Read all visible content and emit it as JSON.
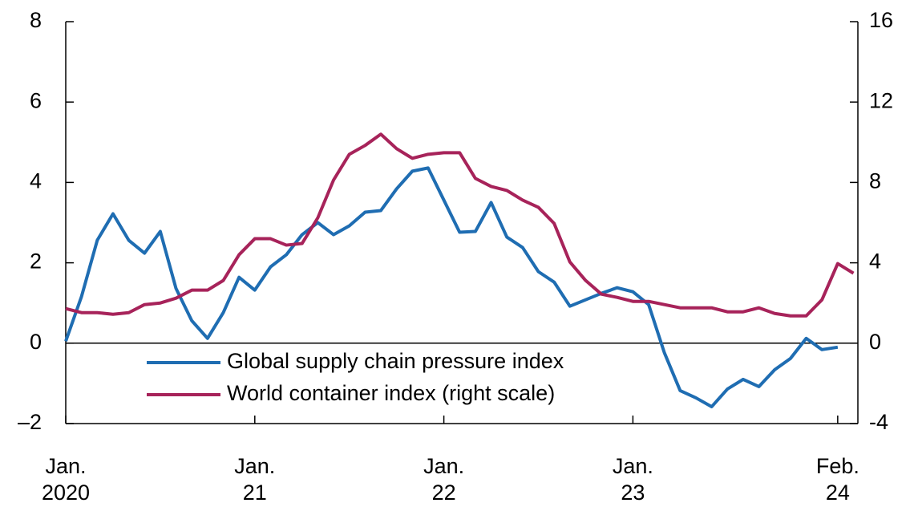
{
  "chart_data": {
    "type": "line",
    "x": [
      "2020-01",
      "2020-02",
      "2020-03",
      "2020-04",
      "2020-05",
      "2020-06",
      "2020-07",
      "2020-08",
      "2020-09",
      "2020-10",
      "2020-11",
      "2020-12",
      "2021-01",
      "2021-02",
      "2021-03",
      "2021-04",
      "2021-05",
      "2021-06",
      "2021-07",
      "2021-08",
      "2021-09",
      "2021-10",
      "2021-11",
      "2021-12",
      "2022-01",
      "2022-02",
      "2022-03",
      "2022-04",
      "2022-05",
      "2022-06",
      "2022-07",
      "2022-08",
      "2022-09",
      "2022-10",
      "2022-11",
      "2022-12",
      "2023-01",
      "2023-02",
      "2023-03",
      "2023-04",
      "2023-05",
      "2023-06",
      "2023-07",
      "2023-08",
      "2023-09",
      "2023-10",
      "2023-11",
      "2023-12",
      "2024-01",
      "2024-02",
      "2024-03"
    ],
    "xticks": [
      {
        "value": "2020-01",
        "label": [
          "Jan.",
          "2020"
        ]
      },
      {
        "value": "2021-01",
        "label": [
          "Jan.",
          "21"
        ]
      },
      {
        "value": "2022-01",
        "label": [
          "Jan.",
          "22"
        ]
      },
      {
        "value": "2023-01",
        "label": [
          "Jan.",
          "23"
        ]
      },
      {
        "value": "2024-02",
        "label": [
          "Feb.",
          "24"
        ]
      }
    ],
    "ylim": [
      -2,
      8
    ],
    "yticks": [
      {
        "value": -2,
        "label": "–2"
      },
      0,
      2,
      4,
      6,
      8
    ],
    "y2lim": [
      -4,
      16
    ],
    "y2ticks": [
      -4,
      0,
      4,
      8,
      12,
      16
    ],
    "series": [
      {
        "name": "Global supply chain pressure index",
        "color": "#1f6db2",
        "values": [
          0.05,
          1.16,
          2.56,
          3.22,
          2.56,
          2.24,
          2.78,
          1.36,
          0.56,
          0.12,
          0.76,
          1.64,
          1.32,
          1.9,
          2.2,
          2.7,
          3.0,
          2.7,
          2.92,
          3.26,
          3.3,
          3.84,
          4.28,
          4.36,
          3.56,
          2.76,
          2.78,
          3.5,
          2.64,
          2.38,
          1.78,
          1.52,
          0.92,
          1.08,
          1.24,
          1.38,
          1.28,
          0.96,
          -0.24,
          -1.18,
          -1.36,
          -1.58,
          -1.14,
          -0.9,
          -1.08,
          -0.66,
          -0.38,
          0.12,
          -0.16,
          -0.1,
          null
        ]
      },
      {
        "name": "World container index (right scale)",
        "color": "#a7235a",
        "axis": "y2",
        "values": [
          1.72,
          1.52,
          1.52,
          1.44,
          1.52,
          1.92,
          2.0,
          2.24,
          2.64,
          2.64,
          3.12,
          4.4,
          5.2,
          5.2,
          4.88,
          4.96,
          6.24,
          8.12,
          9.4,
          9.84,
          10.4,
          9.68,
          9.2,
          9.4,
          9.48,
          9.48,
          8.2,
          7.8,
          7.6,
          7.12,
          6.76,
          5.96,
          4.04,
          3.12,
          2.44,
          2.28,
          2.08,
          2.08,
          1.92,
          1.76,
          1.76,
          1.76,
          1.56,
          1.56,
          1.76,
          1.48,
          1.36,
          1.36,
          2.16,
          3.96,
          3.48
        ]
      }
    ]
  }
}
